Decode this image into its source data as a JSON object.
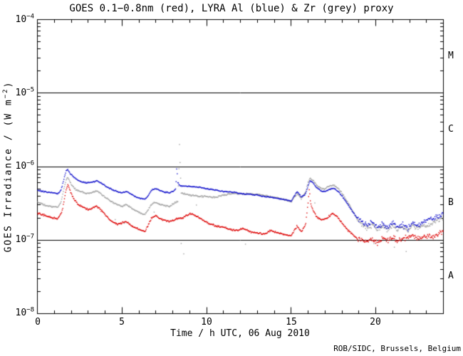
{
  "credit": "ROB/SIDC, Brussels, Belgium",
  "chart_data": {
    "type": "scatter",
    "title": "GOES 0.1−0.8nm (red), LYRA Al (blue) & Zr (grey) proxy",
    "xlabel": "Time / h UTC, 06 Aug 2010",
    "ylabel_parts": {
      "prefix": "GOES Irradiance / (W m",
      "exp": "−2",
      "suffix": ")"
    },
    "xlim": [
      0,
      24
    ],
    "ylim": [
      1e-08,
      0.0001
    ],
    "x_major_ticks": [
      0,
      5,
      10,
      15,
      20
    ],
    "x_tick_labels": [
      "0",
      "5",
      "10",
      "15",
      "20"
    ],
    "x_minor_step_h": 1,
    "y_major_ticks": [
      0.0001,
      1e-05,
      1e-06,
      1e-07,
      1e-08
    ],
    "y_tick_labels": [
      {
        "base": "10",
        "exp": "−4"
      },
      {
        "base": "10",
        "exp": "−5"
      },
      {
        "base": "10",
        "exp": "−6"
      },
      {
        "base": "10",
        "exp": "−7"
      },
      {
        "base": "10",
        "exp": "−8"
      }
    ],
    "grid_hlines": [
      1e-05,
      1e-06,
      1e-07
    ],
    "flare_class_labels": [
      "M",
      "C",
      "B",
      "A"
    ],
    "axis_color": "#000000",
    "background_color": "#ffffff",
    "cadence_minutes": 2,
    "noise_late_after_h": 18.9,
    "series": [
      {
        "name": "LYRA Zr proxy",
        "color": "#a0a0a0",
        "noise_sd_dec": 0.015,
        "noise_sd_dec_late": 0.05,
        "points": [
          [
            0,
            3.3e-07
          ],
          [
            0.4,
            3e-07
          ],
          [
            0.8,
            2.85e-07
          ],
          [
            1.2,
            2.8e-07
          ],
          [
            1.4,
            3.3e-07
          ],
          [
            1.55,
            4.8e-07
          ],
          [
            1.7,
            6.6e-07
          ],
          [
            1.8,
            7.2e-07
          ],
          [
            1.95,
            6e-07
          ],
          [
            2.2,
            5e-07
          ],
          [
            2.5,
            4.6e-07
          ],
          [
            2.9,
            4.3e-07
          ],
          [
            3.2,
            4.4e-07
          ],
          [
            3.5,
            4.7e-07
          ],
          [
            3.8,
            4.2e-07
          ],
          [
            4.1,
            3.7e-07
          ],
          [
            4.4,
            3.3e-07
          ],
          [
            4.7,
            3.05e-07
          ],
          [
            5.0,
            2.9e-07
          ],
          [
            5.25,
            3.05e-07
          ],
          [
            5.5,
            2.8e-07
          ],
          [
            5.8,
            2.5e-07
          ],
          [
            6.1,
            2.35e-07
          ],
          [
            6.35,
            2.25e-07
          ],
          [
            6.55,
            2.6e-07
          ],
          [
            6.75,
            3.1e-07
          ],
          [
            7.0,
            3.3e-07
          ],
          [
            7.2,
            3.1e-07
          ],
          [
            7.5,
            2.95e-07
          ],
          [
            7.8,
            2.9e-07
          ],
          [
            8.1,
            3.2e-07
          ],
          [
            8.3,
            3.4e-07
          ],
          [
            8.36,
            8e-07
          ],
          [
            8.4,
            2e-06
          ],
          [
            8.44,
            1e-06
          ],
          [
            8.5,
            4.4e-07
          ],
          [
            8.8,
            4.2e-07
          ],
          [
            9.1,
            4.05e-07
          ],
          [
            9.5,
            3.95e-07
          ],
          [
            10.0,
            3.9e-07
          ],
          [
            10.5,
            3.8e-07
          ],
          [
            11.0,
            4.1e-07
          ],
          [
            11.5,
            4.3e-07
          ],
          [
            12.0,
            4.3e-07
          ],
          [
            12.5,
            4.25e-07
          ],
          [
            13.0,
            4.2e-07
          ],
          [
            13.5,
            4e-07
          ],
          [
            14.0,
            3.8e-07
          ],
          [
            14.5,
            3.6e-07
          ],
          [
            15.0,
            3.35e-07
          ],
          [
            15.35,
            4.3e-07
          ],
          [
            15.6,
            3.7e-07
          ],
          [
            15.85,
            4.5e-07
          ],
          [
            16.0,
            6e-07
          ],
          [
            16.12,
            7e-07
          ],
          [
            16.3,
            6.5e-07
          ],
          [
            16.5,
            5.6e-07
          ],
          [
            16.8,
            5e-07
          ],
          [
            17.0,
            5e-07
          ],
          [
            17.2,
            5.3e-07
          ],
          [
            17.5,
            5.6e-07
          ],
          [
            17.75,
            5.1e-07
          ],
          [
            18.0,
            4.4e-07
          ],
          [
            18.3,
            3.4e-07
          ],
          [
            18.6,
            2.6e-07
          ],
          [
            18.9,
            1.9e-07
          ],
          [
            19.2,
            1.6e-07
          ],
          [
            19.5,
            1.45e-07
          ],
          [
            19.8,
            1.6e-07
          ],
          [
            20.1,
            1.4e-07
          ],
          [
            20.4,
            1.5e-07
          ],
          [
            20.7,
            1.35e-07
          ],
          [
            21.0,
            1.6e-07
          ],
          [
            21.3,
            1.4e-07
          ],
          [
            21.6,
            1.5e-07
          ],
          [
            21.9,
            1.35e-07
          ],
          [
            22.2,
            1.55e-07
          ],
          [
            22.5,
            1.45e-07
          ],
          [
            22.8,
            1.55e-07
          ],
          [
            23.1,
            1.6e-07
          ],
          [
            23.4,
            1.7e-07
          ],
          [
            23.7,
            1.85e-07
          ],
          [
            24,
            2e-07
          ]
        ]
      },
      {
        "name": "LYRA Al proxy",
        "color": "#1212cc",
        "noise_sd_dec": 0.011,
        "noise_sd_dec_late": 0.05,
        "points": [
          [
            0,
            4.8e-07
          ],
          [
            0.3,
            4.6e-07
          ],
          [
            0.6,
            4.5e-07
          ],
          [
            0.9,
            4.4e-07
          ],
          [
            1.2,
            4.3e-07
          ],
          [
            1.4,
            4.8e-07
          ],
          [
            1.55,
            6.5e-07
          ],
          [
            1.7,
            8.8e-07
          ],
          [
            1.78,
            9.2e-07
          ],
          [
            1.95,
            8e-07
          ],
          [
            2.15,
            7.2e-07
          ],
          [
            2.35,
            6.6e-07
          ],
          [
            2.6,
            6.2e-07
          ],
          [
            2.9,
            6e-07
          ],
          [
            3.2,
            6.1e-07
          ],
          [
            3.5,
            6.4e-07
          ],
          [
            3.8,
            5.9e-07
          ],
          [
            4.1,
            5.3e-07
          ],
          [
            4.4,
            4.9e-07
          ],
          [
            4.7,
            4.6e-07
          ],
          [
            5.0,
            4.4e-07
          ],
          [
            5.25,
            4.6e-07
          ],
          [
            5.5,
            4.3e-07
          ],
          [
            5.8,
            3.9e-07
          ],
          [
            6.1,
            3.7e-07
          ],
          [
            6.35,
            3.6e-07
          ],
          [
            6.55,
            4e-07
          ],
          [
            6.75,
            4.8e-07
          ],
          [
            7.0,
            5e-07
          ],
          [
            7.2,
            4.8e-07
          ],
          [
            7.5,
            4.5e-07
          ],
          [
            7.8,
            4.4e-07
          ],
          [
            8.05,
            4.6e-07
          ],
          [
            8.18,
            5e-07
          ],
          [
            8.24,
            1e-06
          ],
          [
            8.3,
            6e-07
          ],
          [
            8.45,
            5.5e-07
          ],
          [
            8.7,
            5.4e-07
          ],
          [
            9.0,
            5.4e-07
          ],
          [
            9.3,
            5.3e-07
          ],
          [
            9.6,
            5.2e-07
          ],
          [
            10.0,
            5e-07
          ],
          [
            10.5,
            4.8e-07
          ],
          [
            11.0,
            4.6e-07
          ],
          [
            11.5,
            4.5e-07
          ],
          [
            12.0,
            4.3e-07
          ],
          [
            12.5,
            4.2e-07
          ],
          [
            13.0,
            4.1e-07
          ],
          [
            13.5,
            3.9e-07
          ],
          [
            14.0,
            3.75e-07
          ],
          [
            14.5,
            3.6e-07
          ],
          [
            15.0,
            3.4e-07
          ],
          [
            15.35,
            4.6e-07
          ],
          [
            15.6,
            3.9e-07
          ],
          [
            15.85,
            4.2e-07
          ],
          [
            16.0,
            5.5e-07
          ],
          [
            16.12,
            6.4e-07
          ],
          [
            16.3,
            6e-07
          ],
          [
            16.5,
            5.2e-07
          ],
          [
            16.8,
            4.6e-07
          ],
          [
            17.0,
            4.6e-07
          ],
          [
            17.2,
            4.8e-07
          ],
          [
            17.5,
            5.1e-07
          ],
          [
            17.75,
            4.7e-07
          ],
          [
            18.0,
            4e-07
          ],
          [
            18.3,
            3.2e-07
          ],
          [
            18.6,
            2.5e-07
          ],
          [
            18.9,
            2e-07
          ],
          [
            19.2,
            1.75e-07
          ],
          [
            19.5,
            1.6e-07
          ],
          [
            19.8,
            1.75e-07
          ],
          [
            20.1,
            1.5e-07
          ],
          [
            20.4,
            1.65e-07
          ],
          [
            20.7,
            1.45e-07
          ],
          [
            21.0,
            1.8e-07
          ],
          [
            21.3,
            1.5e-07
          ],
          [
            21.6,
            1.6e-07
          ],
          [
            21.9,
            1.45e-07
          ],
          [
            22.2,
            1.7e-07
          ],
          [
            22.5,
            1.55e-07
          ],
          [
            22.8,
            1.75e-07
          ],
          [
            23.1,
            1.9e-07
          ],
          [
            23.4,
            2e-07
          ],
          [
            23.7,
            2.1e-07
          ],
          [
            24,
            2.3e-07
          ]
        ]
      },
      {
        "name": "GOES 0.1-0.8nm",
        "color": "#dd0000",
        "noise_sd_dec": 0.018,
        "noise_sd_dec_late": 0.055,
        "points": [
          [
            0,
            2.3e-07
          ],
          [
            0.3,
            2.25e-07
          ],
          [
            0.6,
            2.1e-07
          ],
          [
            0.9,
            2e-07
          ],
          [
            1.2,
            1.95e-07
          ],
          [
            1.45,
            2.4e-07
          ],
          [
            1.7,
            4.8e-07
          ],
          [
            1.8,
            5.7e-07
          ],
          [
            1.95,
            4.6e-07
          ],
          [
            2.15,
            3.6e-07
          ],
          [
            2.4,
            3.1e-07
          ],
          [
            2.7,
            2.8e-07
          ],
          [
            3.0,
            2.6e-07
          ],
          [
            3.2,
            2.7e-07
          ],
          [
            3.5,
            2.9e-07
          ],
          [
            3.8,
            2.5e-07
          ],
          [
            4.1,
            2.1e-07
          ],
          [
            4.4,
            1.8e-07
          ],
          [
            4.7,
            1.65e-07
          ],
          [
            5.0,
            1.7e-07
          ],
          [
            5.25,
            1.8e-07
          ],
          [
            5.5,
            1.6e-07
          ],
          [
            5.8,
            1.45e-07
          ],
          [
            6.1,
            1.38e-07
          ],
          [
            6.35,
            1.3e-07
          ],
          [
            6.55,
            1.6e-07
          ],
          [
            6.75,
            2e-07
          ],
          [
            7.0,
            2.15e-07
          ],
          [
            7.2,
            2e-07
          ],
          [
            7.5,
            1.85e-07
          ],
          [
            7.8,
            1.8e-07
          ],
          [
            8.0,
            1.85e-07
          ],
          [
            8.3,
            1.95e-07
          ],
          [
            8.6,
            2e-07
          ],
          [
            8.8,
            2.15e-07
          ],
          [
            9.05,
            2.3e-07
          ],
          [
            9.3,
            2.2e-07
          ],
          [
            9.6,
            2e-07
          ],
          [
            9.9,
            1.8e-07
          ],
          [
            10.2,
            1.65e-07
          ],
          [
            10.6,
            1.55e-07
          ],
          [
            11.0,
            1.5e-07
          ],
          [
            11.4,
            1.4e-07
          ],
          [
            11.8,
            1.35e-07
          ],
          [
            12.2,
            1.45e-07
          ],
          [
            12.6,
            1.3e-07
          ],
          [
            13.0,
            1.25e-07
          ],
          [
            13.4,
            1.2e-07
          ],
          [
            13.8,
            1.35e-07
          ],
          [
            14.2,
            1.25e-07
          ],
          [
            14.6,
            1.2e-07
          ],
          [
            15.0,
            1.15e-07
          ],
          [
            15.35,
            1.55e-07
          ],
          [
            15.6,
            1.3e-07
          ],
          [
            15.85,
            1.6e-07
          ],
          [
            16.0,
            3.2e-07
          ],
          [
            16.07,
            4.9e-07
          ],
          [
            16.15,
            3.2e-07
          ],
          [
            16.3,
            2.5e-07
          ],
          [
            16.5,
            2.1e-07
          ],
          [
            16.8,
            1.85e-07
          ],
          [
            17.1,
            2e-07
          ],
          [
            17.45,
            2.3e-07
          ],
          [
            17.7,
            2.1e-07
          ],
          [
            18.0,
            1.7e-07
          ],
          [
            18.3,
            1.4e-07
          ],
          [
            18.6,
            1.2e-07
          ],
          [
            18.9,
            1.05e-07
          ],
          [
            19.2,
            1e-07
          ],
          [
            19.5,
            9.5e-08
          ],
          [
            19.8,
            1e-07
          ],
          [
            20.1,
            9.5e-08
          ],
          [
            20.4,
            1.05e-07
          ],
          [
            20.7,
            1e-07
          ],
          [
            21.0,
            1.1e-07
          ],
          [
            21.3,
            1e-07
          ],
          [
            21.6,
            1.05e-07
          ],
          [
            21.9,
            1.1e-07
          ],
          [
            22.2,
            1.15e-07
          ],
          [
            22.5,
            1.05e-07
          ],
          [
            22.8,
            1.1e-07
          ],
          [
            23.1,
            1.15e-07
          ],
          [
            23.4,
            1.1e-07
          ],
          [
            23.7,
            1.2e-07
          ],
          [
            24,
            1.3e-07
          ]
        ]
      }
    ],
    "outlier_points": {
      "name": "zr-stray-points",
      "color": "#a0a0a0",
      "points": [
        [
          4.6,
          1.9e-07
        ],
        [
          5.15,
          1.7e-07
        ],
        [
          6.9,
          2.4e-07
        ],
        [
          8.5,
          9e-08
        ],
        [
          8.65,
          6.5e-08
        ],
        [
          9.4,
          3e-07
        ],
        [
          12.3,
          8.8e-08
        ],
        [
          16.4,
          3.2e-07
        ],
        [
          19.9,
          9e-08
        ],
        [
          21.1,
          8e-08
        ],
        [
          21.8,
          7e-08
        ]
      ]
    }
  }
}
